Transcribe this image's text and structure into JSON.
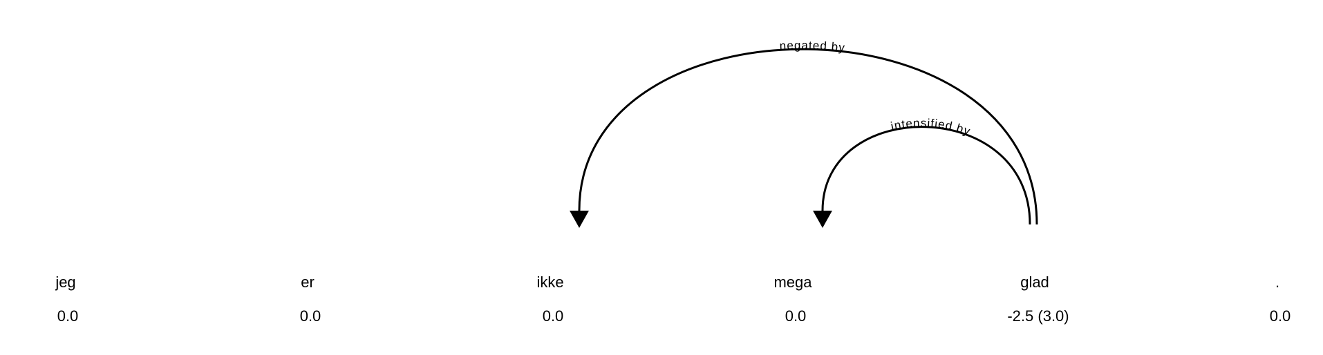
{
  "tokens": [
    {
      "word": "jeg",
      "score": "0.0"
    },
    {
      "word": "er",
      "score": "0.0"
    },
    {
      "word": "ikke",
      "score": "0.0"
    },
    {
      "word": "mega",
      "score": "0.0"
    },
    {
      "word": "glad",
      "score": "-2.5 (3.0)"
    },
    {
      "word": ".",
      "score": "0.0"
    }
  ],
  "arcs": [
    {
      "label": "negated by",
      "from": 4,
      "to": 2
    },
    {
      "label": "intensified by",
      "from": 4,
      "to": 3
    }
  ],
  "colors": {
    "stroke": "#000000",
    "text": "#000000",
    "background": "#ffffff"
  }
}
